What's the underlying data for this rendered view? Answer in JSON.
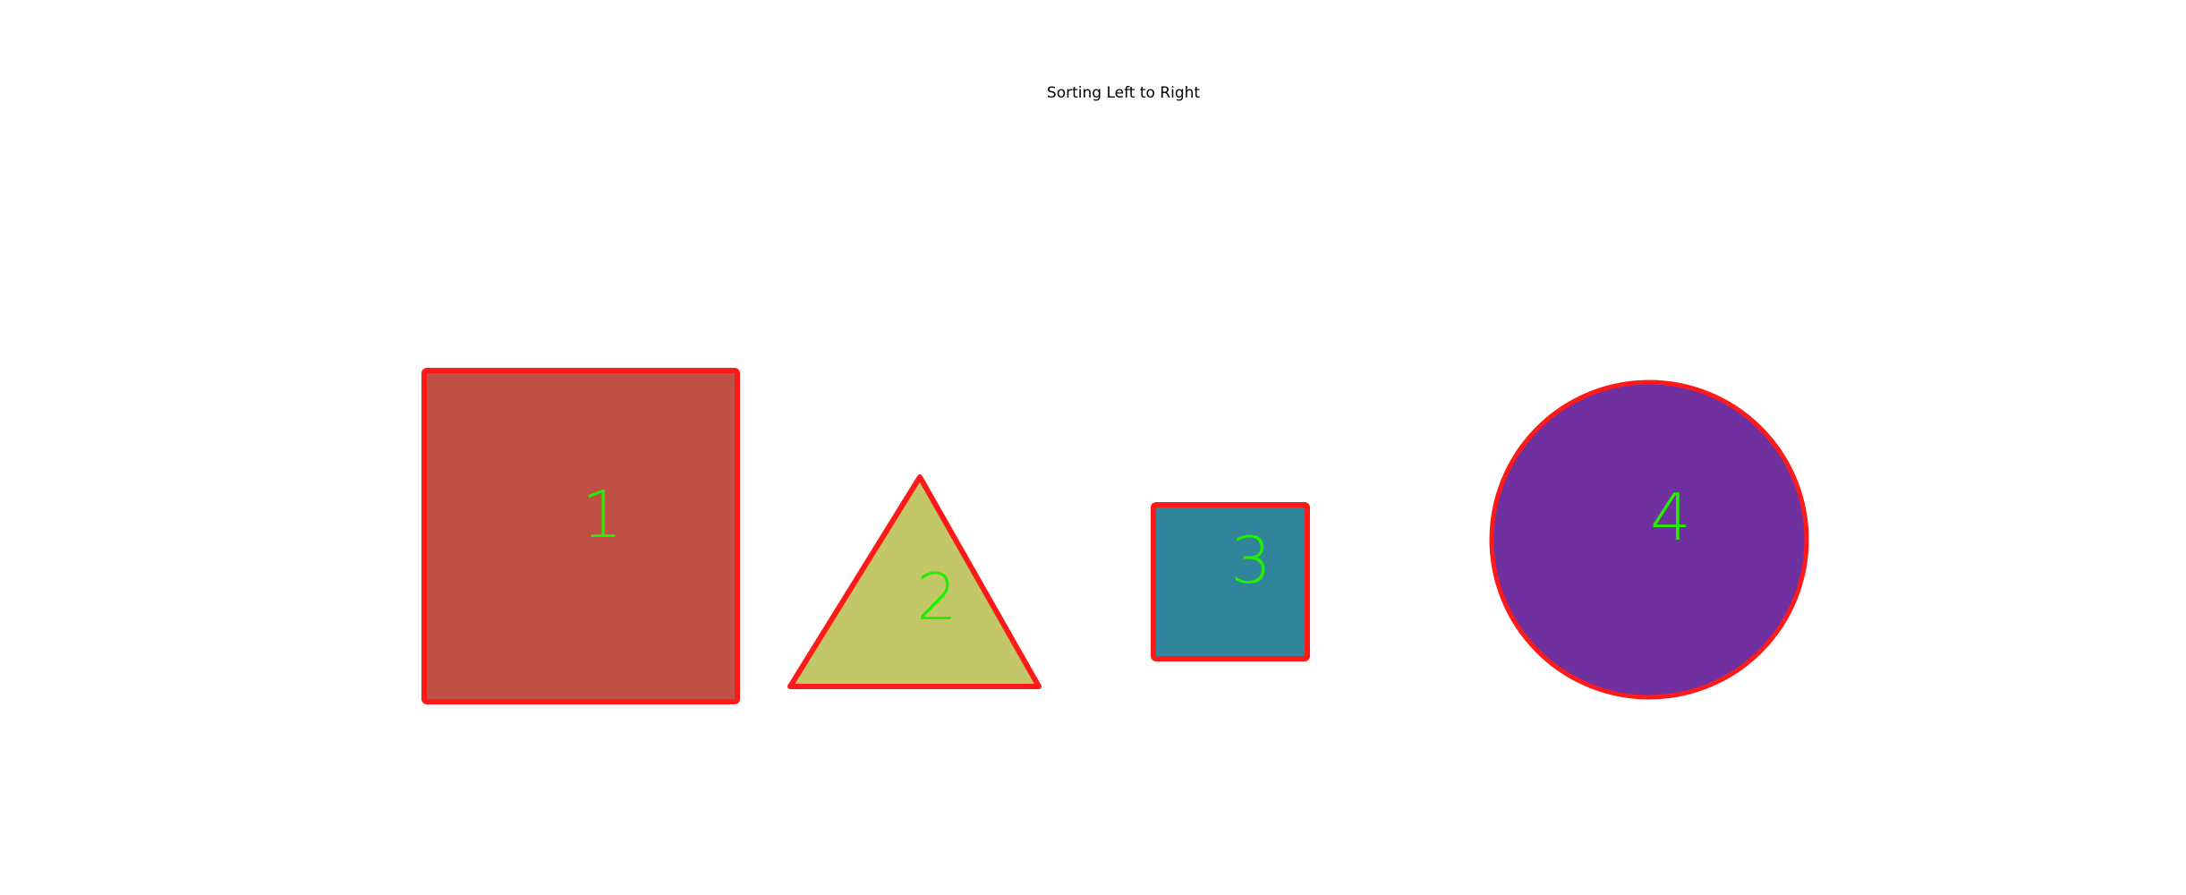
{
  "title": "Sorting Left to Right",
  "colors": {
    "outline": "#ff1a1a",
    "label": "#22ee00",
    "background": "#ffffff"
  },
  "shapes": [
    {
      "index": 1,
      "label": "1",
      "kind": "rectangle",
      "fill": "#c05046"
    },
    {
      "index": 2,
      "label": "2",
      "kind": "triangle",
      "fill": "#c2c767"
    },
    {
      "index": 3,
      "label": "3",
      "kind": "square",
      "fill": "#31859b"
    },
    {
      "index": 4,
      "label": "4",
      "kind": "circle",
      "fill": "#7030a0"
    }
  ]
}
